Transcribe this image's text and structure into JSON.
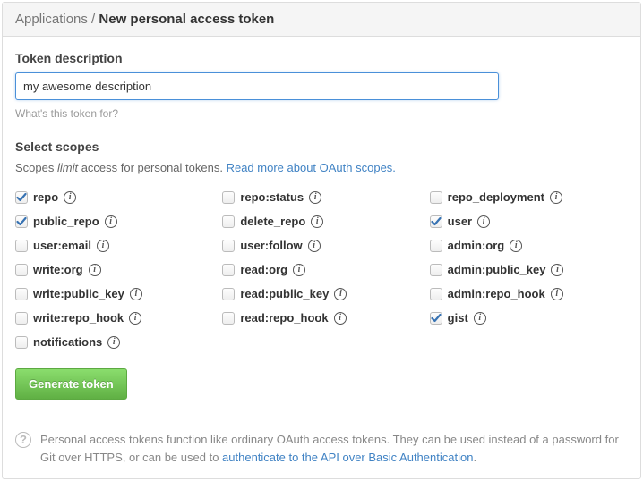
{
  "breadcrumb": {
    "parent": "Applications",
    "current": "New personal access token"
  },
  "description": {
    "label": "Token description",
    "value": "my awesome description",
    "help": "What's this token for?"
  },
  "scopes_section": {
    "label": "Select scopes",
    "desc_prefix": "Scopes ",
    "desc_em": "limit",
    "desc_suffix": " access for personal tokens. ",
    "link_text": "Read more about OAuth scopes."
  },
  "scopes": [
    {
      "name": "repo",
      "checked": true
    },
    {
      "name": "repo:status",
      "checked": false
    },
    {
      "name": "repo_deployment",
      "checked": false
    },
    {
      "name": "public_repo",
      "checked": true
    },
    {
      "name": "delete_repo",
      "checked": false
    },
    {
      "name": "user",
      "checked": true
    },
    {
      "name": "user:email",
      "checked": false
    },
    {
      "name": "user:follow",
      "checked": false
    },
    {
      "name": "admin:org",
      "checked": false
    },
    {
      "name": "write:org",
      "checked": false
    },
    {
      "name": "read:org",
      "checked": false
    },
    {
      "name": "admin:public_key",
      "checked": false
    },
    {
      "name": "write:public_key",
      "checked": false
    },
    {
      "name": "read:public_key",
      "checked": false
    },
    {
      "name": "admin:repo_hook",
      "checked": false
    },
    {
      "name": "write:repo_hook",
      "checked": false
    },
    {
      "name": "read:repo_hook",
      "checked": false
    },
    {
      "name": "gist",
      "checked": true
    },
    {
      "name": "notifications",
      "checked": false
    }
  ],
  "submit_label": "Generate token",
  "footer": {
    "text_pre": "Personal access tokens function like ordinary OAuth access tokens. They can be used instead of a password for Git over HTTPS, or can be used to ",
    "link": "authenticate to the API over Basic Authentication",
    "text_post": "."
  },
  "colors": {
    "accent": "#4183c4",
    "button_bg_top": "#8add6d",
    "button_bg_bottom": "#60b044",
    "check": "#3873b3"
  }
}
